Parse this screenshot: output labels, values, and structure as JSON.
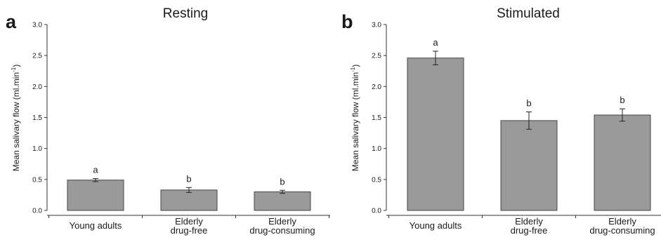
{
  "chart_data": [
    {
      "panel_label": "a",
      "type": "bar",
      "title": "Resting",
      "xlabel": "",
      "ylabel": "Mean salivary flow (ml.min",
      "ylabel_superscript": "-1",
      "ylabel_suffix": ")",
      "ylim": [
        0,
        3.0
      ],
      "yticks": [
        "0.0",
        "0.5",
        "1.0",
        "1.5",
        "2.0",
        "2.5",
        "3.0"
      ],
      "categories": [
        [
          "Young adults"
        ],
        [
          "Elderly",
          "drug-free"
        ],
        [
          "Elderly",
          "drug-consuming"
        ]
      ],
      "values": [
        0.49,
        0.33,
        0.3
      ],
      "errors": [
        0.025,
        0.04,
        0.025
      ],
      "group_letters": [
        "a",
        "b",
        "b"
      ],
      "bar_color": "#9a9a9a",
      "grid": false
    },
    {
      "panel_label": "b",
      "type": "bar",
      "title": "Stimulated",
      "xlabel": "",
      "ylabel": "Mean salivary flow (ml.min",
      "ylabel_superscript": "-1",
      "ylabel_suffix": ")",
      "ylim": [
        0,
        3.0
      ],
      "yticks": [
        "0.0",
        "0.5",
        "1.0",
        "1.5",
        "2.0",
        "2.5",
        "3.0"
      ],
      "categories": [
        [
          "Young adults"
        ],
        [
          "Elderly",
          "drug-free"
        ],
        [
          "Elderly",
          "drug-consuming"
        ]
      ],
      "values": [
        2.46,
        1.45,
        1.54
      ],
      "errors": [
        0.11,
        0.14,
        0.1
      ],
      "group_letters": [
        "a",
        "b",
        "b"
      ],
      "bar_color": "#9a9a9a",
      "grid": false
    }
  ]
}
